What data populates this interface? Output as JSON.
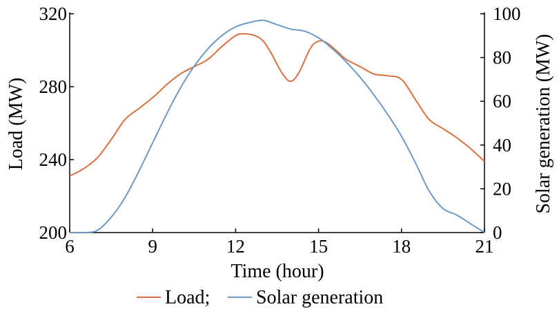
{
  "chart_data": {
    "type": "line",
    "xlabel": "Time (hour)",
    "ylabel": "Load (MW)",
    "y2label": "Solar generation (MW)",
    "xlim": [
      6,
      21
    ],
    "ylim": [
      200,
      320
    ],
    "y2lim": [
      0,
      100
    ],
    "x_ticks": [
      "6",
      "9",
      "12",
      "15",
      "18",
      "21"
    ],
    "y_ticks": [
      "200",
      "240",
      "280",
      "320"
    ],
    "y2_ticks": [
      "0",
      "20",
      "40",
      "60",
      "80",
      "100"
    ],
    "grid": false,
    "legend_placement": "bottom",
    "series": [
      {
        "name": "Load;",
        "axis": "left",
        "color": "#d9703f",
        "x": [
          6,
          6.5,
          7,
          7.5,
          8,
          8.5,
          9,
          9.5,
          10,
          10.5,
          11,
          11.5,
          12,
          12.3,
          12.7,
          13,
          13.3,
          13.7,
          14,
          14.3,
          14.7,
          15,
          15.3,
          15.7,
          16,
          16.5,
          17,
          17.5,
          18,
          18.5,
          19,
          19.5,
          20,
          20.5,
          21
        ],
        "values": [
          231,
          235,
          241,
          251,
          262,
          268,
          274,
          281,
          287,
          291,
          295,
          302,
          308,
          309,
          308,
          305,
          298,
          287,
          283,
          288,
          301,
          305,
          304,
          299,
          295,
          291,
          287,
          286,
          284,
          273,
          262,
          257,
          252,
          246,
          239
        ]
      },
      {
        "name": "Solar generation",
        "axis": "right",
        "color": "#6e99c5",
        "x": [
          6,
          6.5,
          7,
          7.5,
          8,
          8.5,
          9,
          9.5,
          10,
          10.5,
          11,
          11.5,
          12,
          12.5,
          13,
          13.5,
          14,
          14.5,
          15,
          15.5,
          16,
          16.5,
          17,
          17.5,
          18,
          18.5,
          19,
          19.5,
          20,
          20.5,
          21
        ],
        "values": [
          0,
          0,
          1,
          7,
          16,
          28,
          41,
          54,
          66,
          76,
          84,
          90,
          94,
          96,
          97,
          95,
          93,
          92,
          89,
          84,
          78,
          71,
          63,
          54,
          44,
          32,
          19,
          11,
          8,
          4,
          0
        ]
      }
    ]
  }
}
